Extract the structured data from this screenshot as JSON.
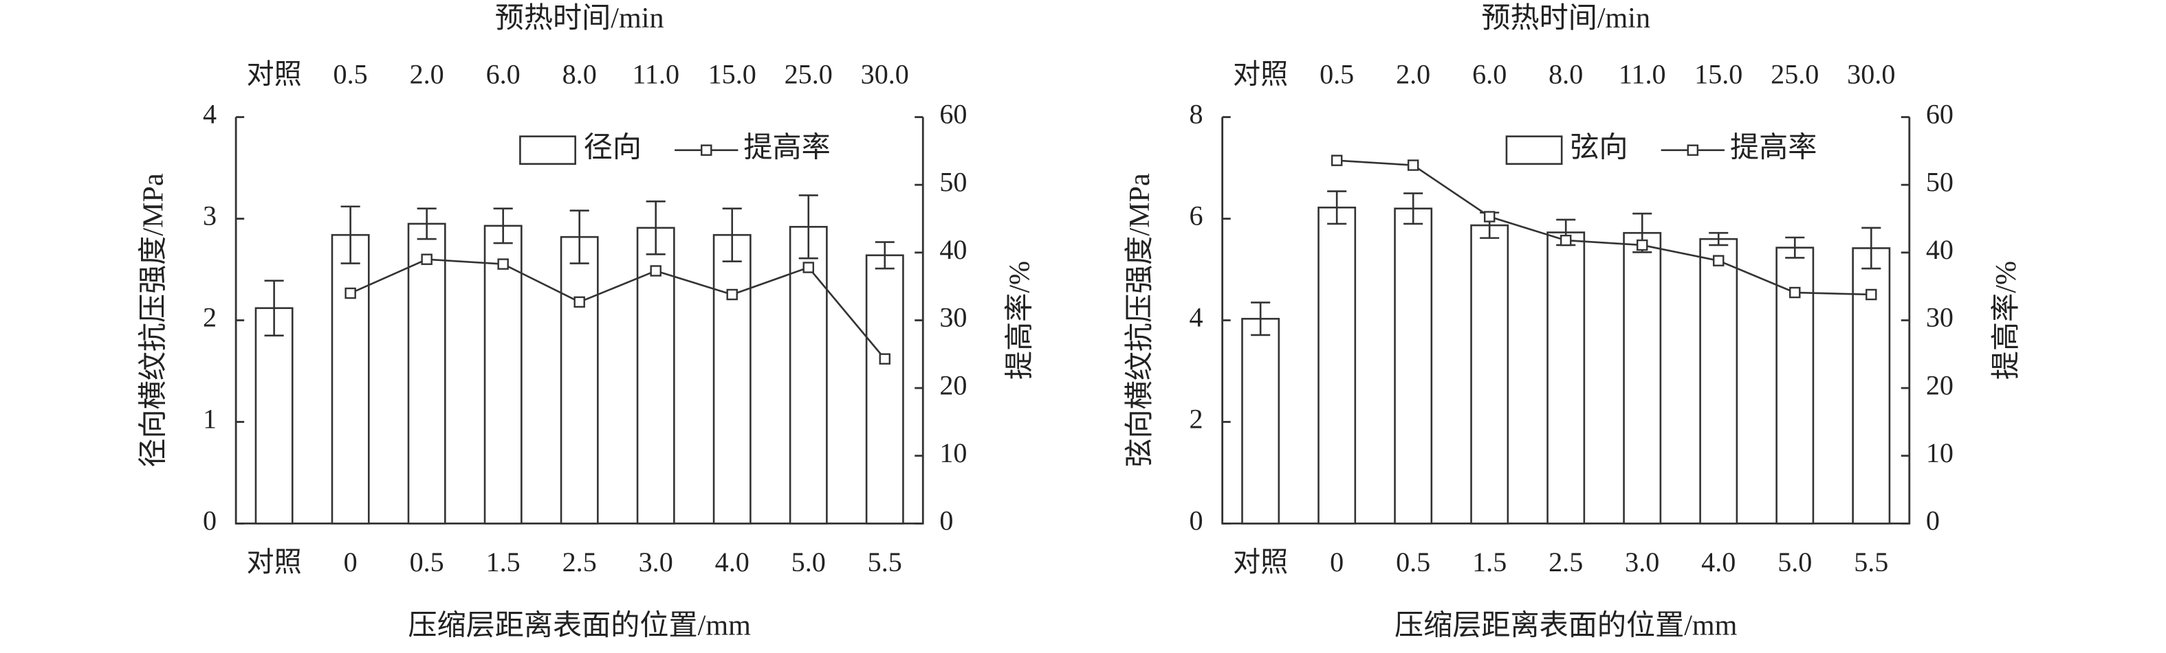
{
  "chart_data": [
    {
      "type": "bar",
      "top_axis_label": "预热时间/min",
      "top_categories": [
        "对照",
        "0.5",
        "2.0",
        "6.0",
        "8.0",
        "11.0",
        "15.0",
        "25.0",
        "30.0"
      ],
      "categories": [
        "对照",
        "0",
        "0.5",
        "1.5",
        "2.5",
        "3.0",
        "4.0",
        "5.0",
        "5.5"
      ],
      "x_label": "压缩层距离表面的位置/mm",
      "y_label": "径向横纹抗压强度/MPa",
      "y2_label": "提高率/%",
      "ylim": [
        0,
        4
      ],
      "yticks": [
        0,
        1,
        2,
        3,
        4
      ],
      "y2lim": [
        0,
        60
      ],
      "y2ticks": [
        0,
        10,
        20,
        30,
        40,
        50,
        60
      ],
      "legend": "upper right",
      "series": [
        {
          "name": "径向",
          "color": "#ffffff",
          "values": [
            2.12,
            2.84,
            2.95,
            2.93,
            2.82,
            2.91,
            2.84,
            2.92,
            2.64
          ],
          "errors": [
            0.27,
            0.28,
            0.15,
            0.17,
            0.26,
            0.26,
            0.26,
            0.31,
            0.13
          ]
        },
        {
          "name": "提高率",
          "type": "line",
          "axis": "y2",
          "color": "#333333",
          "values": [
            null,
            34,
            39,
            38.3,
            32.7,
            37.3,
            33.8,
            37.8,
            24.3
          ]
        }
      ]
    },
    {
      "type": "bar",
      "top_axis_label": "预热时间/min",
      "top_categories": [
        "对照",
        "0.5",
        "2.0",
        "6.0",
        "8.0",
        "11.0",
        "15.0",
        "25.0",
        "30.0"
      ],
      "categories": [
        "对照",
        "0",
        "0.5",
        "1.5",
        "2.5",
        "3.0",
        "4.0",
        "5.0",
        "5.5"
      ],
      "x_label": "压缩层距离表面的位置/mm",
      "y_label": "弦向横纹抗压强度/MPa",
      "y2_label": "提高率/%",
      "ylim": [
        0,
        8
      ],
      "yticks": [
        0,
        2,
        4,
        6,
        8
      ],
      "y2lim": [
        0,
        60
      ],
      "y2ticks": [
        0,
        10,
        20,
        30,
        40,
        50,
        60
      ],
      "legend": "upper right",
      "series": [
        {
          "name": "弦向",
          "color": "#ffffff",
          "values": [
            4.03,
            6.22,
            6.2,
            5.87,
            5.73,
            5.72,
            5.6,
            5.43,
            5.42
          ],
          "errors": [
            0.32,
            0.32,
            0.3,
            0.25,
            0.25,
            0.38,
            0.12,
            0.2,
            0.4
          ]
        },
        {
          "name": "提高率",
          "type": "line",
          "axis": "y2",
          "color": "#333333",
          "values": [
            null,
            53.6,
            52.9,
            45.3,
            41.8,
            41.1,
            38.8,
            34.1,
            33.8
          ]
        }
      ]
    }
  ]
}
